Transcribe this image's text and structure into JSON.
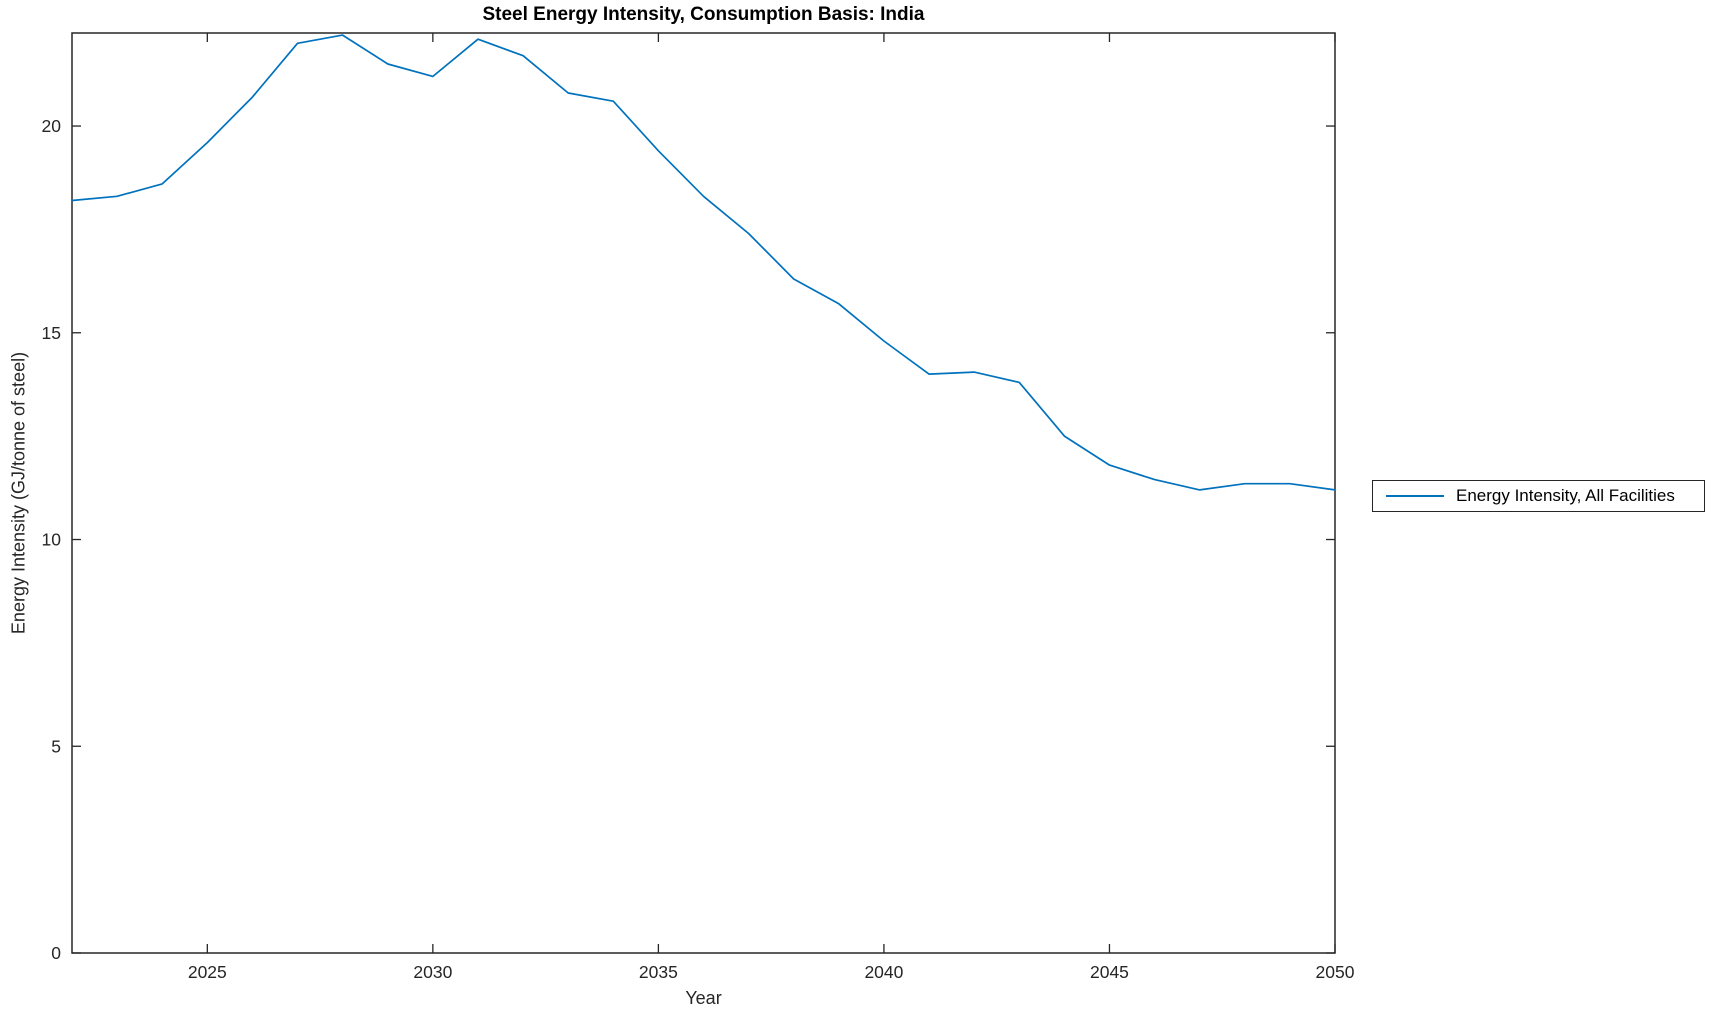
{
  "figure": {
    "title": "Steel Energy Intensity, Consumption Basis: India",
    "xlabel": "Year",
    "ylabel": "Energy Intensity (GJ/tonne of steel)",
    "axis_color": "#262626",
    "background_color": "#ffffff",
    "legend": {
      "label": "Energy Intensity, All Facilities",
      "line_color": "#0072BD"
    }
  },
  "chart_data": {
    "type": "line",
    "title": "Steel Energy Intensity, Consumption Basis: India",
    "xlabel": "Year",
    "ylabel": "Energy Intensity (GJ/tonne of steel)",
    "xlim": [
      2022,
      2050
    ],
    "ylim": [
      0,
      22.25
    ],
    "xticks": [
      2025,
      2030,
      2035,
      2040,
      2045,
      2050
    ],
    "yticks": [
      0,
      5,
      10,
      15,
      20
    ],
    "grid": false,
    "box": true,
    "tick_direction": "in",
    "legend_position": "outside-right",
    "series": [
      {
        "name": "Energy Intensity, All Facilities",
        "color": "#0072BD",
        "x": [
          2022,
          2023,
          2024,
          2025,
          2026,
          2027,
          2028,
          2029,
          2030,
          2031,
          2032,
          2033,
          2034,
          2035,
          2036,
          2037,
          2038,
          2039,
          2040,
          2041,
          2042,
          2043,
          2044,
          2045,
          2046,
          2047,
          2048,
          2049,
          2050
        ],
        "values": [
          18.2,
          18.3,
          18.6,
          19.6,
          20.7,
          22.0,
          22.2,
          21.5,
          21.2,
          22.1,
          21.7,
          20.8,
          20.6,
          19.4,
          18.3,
          17.4,
          16.3,
          15.7,
          14.8,
          14.0,
          14.05,
          13.8,
          12.5,
          11.8,
          11.45,
          11.2,
          11.35,
          11.35,
          11.2
        ]
      }
    ]
  }
}
